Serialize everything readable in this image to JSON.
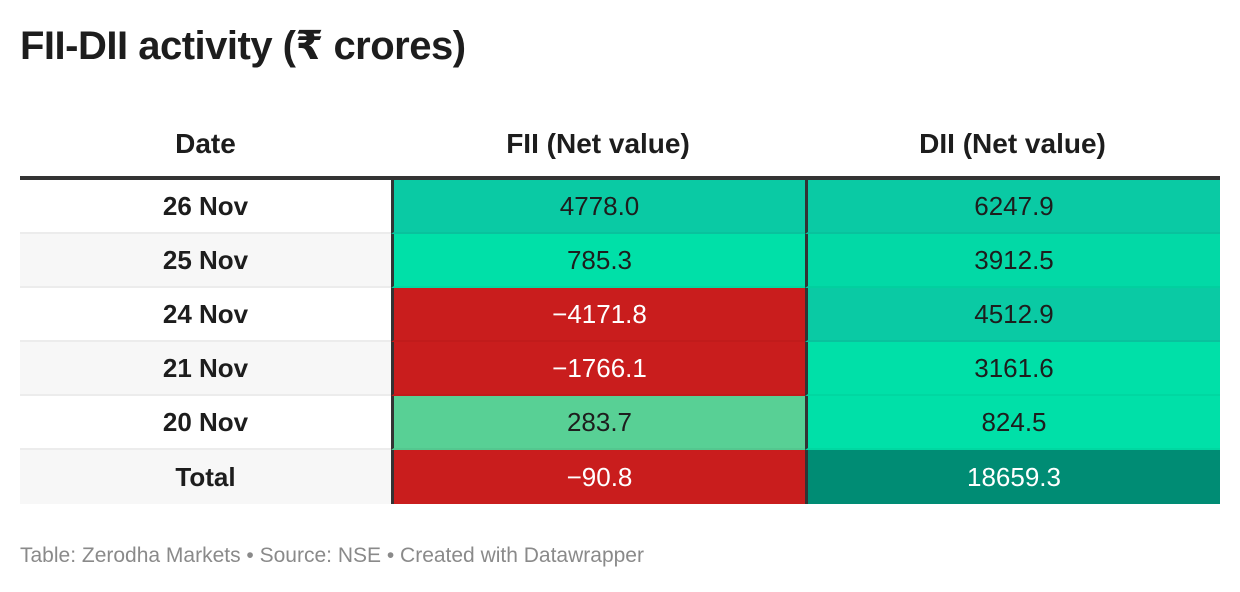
{
  "header": {
    "title": "FII-DII activity (₹ crores)"
  },
  "chart_data": {
    "type": "table",
    "title": "FII-DII activity (₹ crores)",
    "columns": [
      "Date",
      "FII (Net value)",
      "DII (Net value)"
    ],
    "rows": [
      {
        "date": "26 Nov",
        "fii": "4778.0",
        "dii": "6247.9",
        "fii_color": "#0acaa4",
        "dii_color": "#0acaa4"
      },
      {
        "date": "25 Nov",
        "fii": "785.3",
        "dii": "3912.5",
        "fii_color": "#00e0a8",
        "dii_color": "#02d9a6"
      },
      {
        "date": "24 Nov",
        "fii": "−4171.8",
        "dii": "4512.9",
        "fii_color": "#c91d1d",
        "dii_color": "#0acaa4"
      },
      {
        "date": "21 Nov",
        "fii": "−1766.1",
        "dii": "3161.6",
        "fii_color": "#c91d1d",
        "dii_color": "#00e0a8"
      },
      {
        "date": "20 Nov",
        "fii": "283.7",
        "dii": "824.5",
        "fii_color": "#58d095",
        "dii_color": "#00e0a8"
      },
      {
        "date": "Total",
        "fii": "−90.8",
        "dii": "18659.3",
        "fii_color": "#c91d1d",
        "dii_color": "#008c74"
      }
    ],
    "text_colors": {
      "dark": "#1d1d1d",
      "light": "#ffffff"
    }
  },
  "footer": {
    "text": "Table: Zerodha Markets • Source: NSE • Created with Datawrapper"
  }
}
